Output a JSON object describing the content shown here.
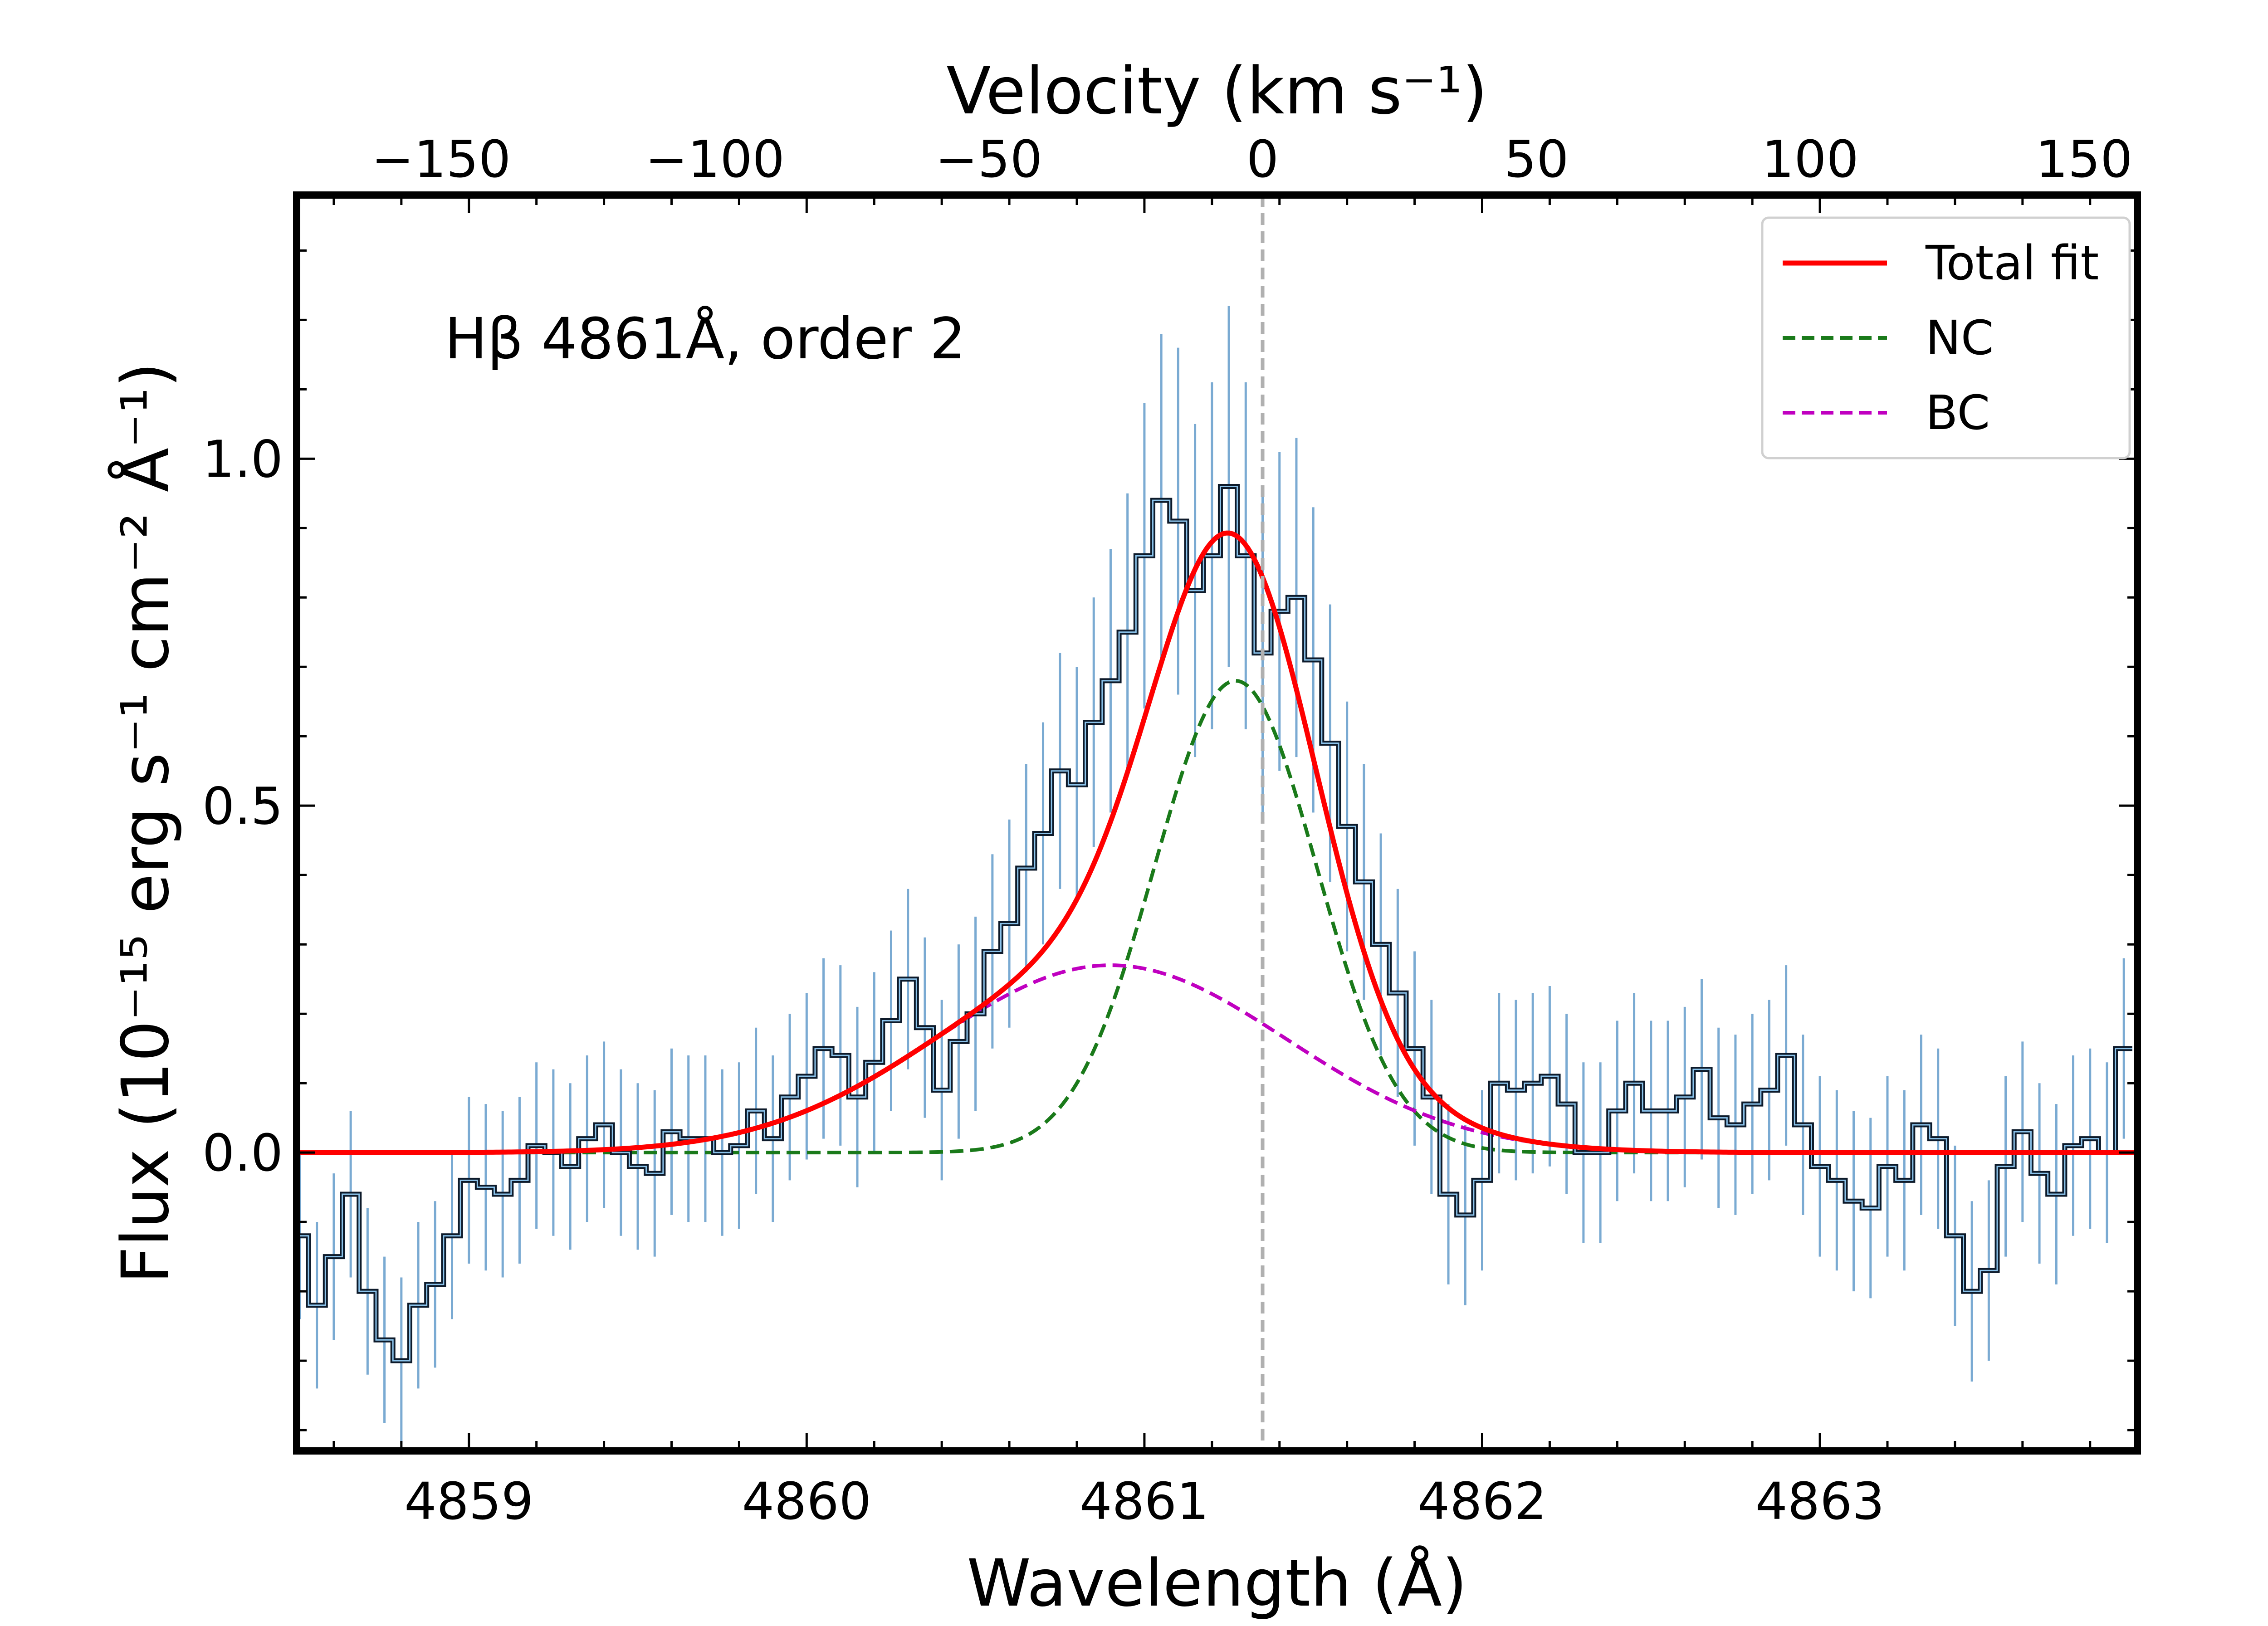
{
  "chart_data": {
    "type": "line",
    "title": "",
    "xlabel": "Wavelength (Å)",
    "ylabel": "Flux (10⁻¹⁵ erg s⁻¹ cm⁻² Å⁻¹)",
    "top_xlabel": "Velocity (km s⁻¹)",
    "annotation": "Hβ 4861Å, order 2",
    "xlim": [
      4858.49,
      4863.94
    ],
    "ylim": [
      -0.43,
      1.38
    ],
    "x_ticks": [
      4859,
      4860,
      4861,
      4862,
      4863
    ],
    "x_tick_labels": [
      "4859",
      "4860",
      "4861",
      "4862",
      "4863"
    ],
    "y_ticks": [
      0.0,
      0.5,
      1.0
    ],
    "y_tick_labels": [
      "0.0",
      "0.5",
      "1.0"
    ],
    "top_ticks": [
      -150,
      -100,
      -50,
      0,
      50,
      100,
      150
    ],
    "top_tick_labels": [
      "−150",
      "−100",
      "−50",
      "0",
      "50",
      "100",
      "150"
    ],
    "velocity_zero_wavelength": 4861.35,
    "reference_line_x": 4861.35,
    "grid": false,
    "legend_position": "top-right",
    "legend": [
      {
        "label": "Total fit",
        "color": "#ff0000",
        "style": "solid"
      },
      {
        "label": "NC",
        "color": "#1a7a1a",
        "style": "dashed"
      },
      {
        "label": "BC",
        "color": "#c000c0",
        "style": "dashed"
      }
    ],
    "data_color": "#0d1a2a",
    "error_color": "#7aaad2",
    "step_width": 0.05,
    "data": {
      "x": [
        4858.5,
        4858.55,
        4858.6,
        4858.65,
        4858.7,
        4858.75,
        4858.8,
        4858.85,
        4858.9,
        4858.95,
        4859.0,
        4859.05,
        4859.1,
        4859.15,
        4859.2,
        4859.25,
        4859.3,
        4859.35,
        4859.4,
        4859.45,
        4859.5,
        4859.55,
        4859.6,
        4859.65,
        4859.7,
        4859.75,
        4859.8,
        4859.85,
        4859.9,
        4859.95,
        4860.0,
        4860.05,
        4860.1,
        4860.15,
        4860.2,
        4860.25,
        4860.3,
        4860.35,
        4860.4,
        4860.45,
        4860.5,
        4860.55,
        4860.6,
        4860.65,
        4860.7,
        4860.75,
        4860.8,
        4860.85,
        4860.9,
        4860.95,
        4861.0,
        4861.05,
        4861.1,
        4861.15,
        4861.2,
        4861.25,
        4861.3,
        4861.35,
        4861.4,
        4861.45,
        4861.5,
        4861.55,
        4861.6,
        4861.65,
        4861.7,
        4861.75,
        4861.8,
        4861.85,
        4861.9,
        4861.95,
        4862.0,
        4862.05,
        4862.1,
        4862.15,
        4862.2,
        4862.25,
        4862.3,
        4862.35,
        4862.4,
        4862.45,
        4862.5,
        4862.55,
        4862.6,
        4862.65,
        4862.7,
        4862.75,
        4862.8,
        4862.85,
        4862.9,
        4862.95,
        4863.0,
        4863.05,
        4863.1,
        4863.15,
        4863.2,
        4863.25,
        4863.3,
        4863.35,
        4863.4,
        4863.45,
        4863.5,
        4863.55,
        4863.6,
        4863.65,
        4863.7,
        4863.75,
        4863.8,
        4863.85,
        4863.9
      ],
      "y": [
        -0.12,
        -0.22,
        -0.15,
        -0.06,
        -0.2,
        -0.27,
        -0.3,
        -0.22,
        -0.19,
        -0.12,
        -0.04,
        -0.05,
        -0.06,
        -0.04,
        0.01,
        0.0,
        -0.02,
        0.02,
        0.04,
        0.0,
        -0.02,
        -0.03,
        0.03,
        0.02,
        0.02,
        0.0,
        0.01,
        0.06,
        0.02,
        0.08,
        0.11,
        0.15,
        0.14,
        0.08,
        0.13,
        0.19,
        0.25,
        0.18,
        0.09,
        0.16,
        0.2,
        0.29,
        0.33,
        0.41,
        0.46,
        0.55,
        0.53,
        0.62,
        0.68,
        0.75,
        0.86,
        0.94,
        0.91,
        0.81,
        0.86,
        0.96,
        0.86,
        0.72,
        0.78,
        0.8,
        0.71,
        0.59,
        0.47,
        0.39,
        0.3,
        0.23,
        0.15,
        0.08,
        -0.06,
        -0.09,
        -0.04,
        0.1,
        0.09,
        0.1,
        0.11,
        0.07,
        0.0,
        0.0,
        0.06,
        0.1,
        0.06,
        0.06,
        0.08,
        0.12,
        0.05,
        0.04,
        0.07,
        0.09,
        0.14,
        0.04,
        -0.02,
        -0.04,
        -0.07,
        -0.08,
        -0.02,
        -0.04,
        0.04,
        0.02,
        -0.12,
        -0.2,
        -0.17,
        -0.02,
        0.03,
        -0.03,
        -0.06,
        0.01,
        0.02,
        0.0,
        0.15
      ],
      "err": [
        0.12,
        0.12,
        0.12,
        0.12,
        0.12,
        0.12,
        0.12,
        0.12,
        0.12,
        0.12,
        0.12,
        0.12,
        0.12,
        0.12,
        0.12,
        0.12,
        0.12,
        0.12,
        0.12,
        0.12,
        0.12,
        0.12,
        0.12,
        0.12,
        0.12,
        0.12,
        0.12,
        0.12,
        0.12,
        0.12,
        0.12,
        0.13,
        0.13,
        0.13,
        0.13,
        0.13,
        0.13,
        0.13,
        0.13,
        0.14,
        0.14,
        0.14,
        0.15,
        0.15,
        0.16,
        0.17,
        0.17,
        0.18,
        0.19,
        0.2,
        0.22,
        0.24,
        0.25,
        0.24,
        0.25,
        0.26,
        0.25,
        0.23,
        0.23,
        0.23,
        0.22,
        0.2,
        0.18,
        0.17,
        0.16,
        0.15,
        0.14,
        0.14,
        0.13,
        0.13,
        0.13,
        0.13,
        0.13,
        0.13,
        0.13,
        0.13,
        0.13,
        0.13,
        0.13,
        0.13,
        0.13,
        0.13,
        0.13,
        0.13,
        0.13,
        0.13,
        0.13,
        0.13,
        0.13,
        0.13,
        0.13,
        0.13,
        0.13,
        0.13,
        0.13,
        0.13,
        0.13,
        0.13,
        0.13,
        0.13,
        0.13,
        0.13,
        0.13,
        0.13,
        0.13,
        0.13,
        0.13,
        0.13,
        0.13
      ]
    },
    "components": {
      "nc": {
        "amplitude": 0.68,
        "center": 4861.27,
        "sigma": 0.24
      },
      "bc": {
        "amplitude": 0.27,
        "center": 4860.9,
        "sigma": 0.52
      }
    }
  }
}
